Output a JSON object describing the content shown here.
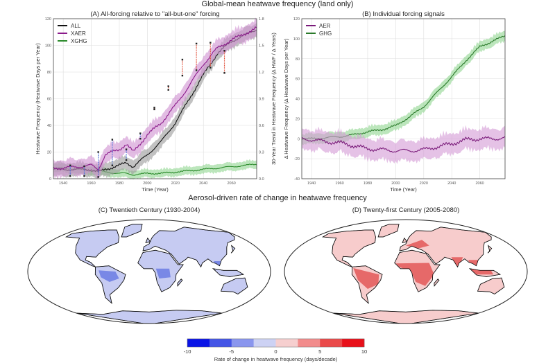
{
  "titles": {
    "top": "Global-mean heatwave frequency (land only)",
    "bottom": "Aerosol-driven rate of change in heatwave frequency"
  },
  "chart_data": [
    {
      "id": "A",
      "type": "line",
      "title": "(A) All-forcing relative to \"all-but-one\" forcing",
      "xlabel": "Time (Year)",
      "ylabel": "Heatwave Frequency (Heatwave Days per Year)",
      "ylabel_right": "30-Year Trend in Heatwave Frequency (Δ HWF / Δ Years)",
      "xlim": [
        1933,
        2078
      ],
      "ylim": [
        0,
        120
      ],
      "ylim_right": [
        0.0,
        1.8
      ],
      "xticks": [
        1940,
        1960,
        1980,
        2000,
        2020,
        2040,
        2060
      ],
      "yticks": [
        0,
        20,
        40,
        60,
        80,
        100,
        120
      ],
      "yticks_right": [
        "0.0",
        "0.3",
        "0.6",
        "0.9",
        "1.2",
        "1.5",
        "1.8"
      ],
      "grid": true,
      "legend": "top-left",
      "x": [
        1933,
        1940,
        1950,
        1960,
        1965,
        1970,
        1980,
        1985,
        1990,
        2000,
        2010,
        2020,
        2030,
        2040,
        2050,
        2060,
        2070,
        2078
      ],
      "series": [
        {
          "name": "ALL",
          "color": "#111111",
          "band": "#9a9a9a",
          "spread": 5,
          "values": [
            7,
            7,
            7,
            7,
            5,
            7,
            10,
            12,
            9,
            18,
            28,
            42,
            60,
            78,
            94,
            103,
            108,
            112
          ]
        },
        {
          "name": "XAER",
          "color": "#8b1a8b",
          "band": "#cf8fd0",
          "spread": 6,
          "values": [
            8,
            8,
            9,
            10,
            7,
            18,
            22,
            26,
            20,
            33,
            42,
            55,
            70,
            86,
            98,
            104,
            109,
            113
          ]
        },
        {
          "name": "XGHG",
          "color": "#2a8a2a",
          "band": "#8fd68f",
          "spread": 3,
          "values": [
            8,
            8,
            7,
            6,
            6,
            5,
            4,
            4,
            3,
            4,
            4,
            5,
            6,
            7,
            8,
            9,
            10,
            11
          ]
        }
      ],
      "trend_markers": {
        "years": [
          1945,
          1955,
          1965,
          1975,
          1985,
          1995,
          2005,
          2015,
          2025,
          2035,
          2045,
          2055
        ],
        "ranges": [
          [
            0.03,
            0.15
          ],
          [
            0.03,
            0.14
          ],
          [
            0.02,
            0.3
          ],
          [
            0.15,
            0.44
          ],
          [
            0.21,
            0.33
          ],
          [
            0.45,
            0.51
          ],
          [
            0.78,
            0.8
          ],
          [
            1.0,
            1.04
          ],
          [
            1.16,
            1.34
          ],
          [
            1.22,
            1.52
          ],
          [
            1.25,
            1.53
          ],
          [
            1.19,
            1.44
          ]
        ],
        "early_color": "#4a6fd8",
        "late_color": "#e0503a"
      }
    },
    {
      "id": "B",
      "type": "line",
      "title": "(B) Individual forcing signals",
      "xlabel": "Time (Year)",
      "ylabel": "Δ Heatwave Frequency (Δ Heatwave Days per Year)",
      "xlim": [
        1933,
        2078
      ],
      "ylim": [
        -40,
        120
      ],
      "xticks": [
        1940,
        1960,
        1980,
        2000,
        2020,
        2040,
        2060
      ],
      "yticks": [
        -40,
        -20,
        0,
        20,
        40,
        60,
        80,
        100,
        120
      ],
      "grid": true,
      "legend": "top-left",
      "x": [
        1933,
        1940,
        1950,
        1960,
        1970,
        1980,
        1990,
        2000,
        2010,
        2020,
        2030,
        2040,
        2050,
        2060,
        2070,
        2078
      ],
      "series": [
        {
          "name": "AER",
          "color": "#7a1a7a",
          "band": "#d39ad6",
          "spread": 10,
          "values": [
            0,
            -1,
            -3,
            -4,
            -7,
            -10,
            -11,
            -12,
            -12,
            -11,
            -8,
            -5,
            -1,
            0,
            0,
            1
          ]
        },
        {
          "name": "GHG",
          "color": "#2a7a2a",
          "band": "#8fd68f",
          "spread": 5,
          "values": [
            0,
            0,
            1,
            2,
            4,
            7,
            9,
            13,
            22,
            32,
            47,
            62,
            78,
            92,
            98,
            103
          ]
        }
      ]
    },
    {
      "id": "C",
      "type": "heatmap",
      "title": "(C) Twentieth Century (1930-2004)",
      "base_color": "#c6cbf2",
      "hotspot_color": "#5f72e2",
      "hotspots": [
        "Amazon",
        "Central Africa",
        "Southeast Asia"
      ]
    },
    {
      "id": "D",
      "type": "heatmap",
      "title": "(D) Twenty-first Century (2005-2080)",
      "base_color": "#f7cccc",
      "hotspot_color": "#e04848",
      "hotspots": [
        "South America",
        "Africa",
        "India",
        "Southeast Asia",
        "Europe"
      ]
    }
  ],
  "colorbar": {
    "label": "Rate of change in heatwave frequency (days/decade)",
    "ticks": [
      "-10",
      "-5",
      "0",
      "5",
      "10"
    ],
    "range": [
      -10,
      10
    ],
    "colors": [
      "#0a14e6",
      "#4455e6",
      "#8a96ee",
      "#cdd2f4",
      "#f6cfcf",
      "#f28c8c",
      "#ea4a4a",
      "#e8101a"
    ]
  }
}
